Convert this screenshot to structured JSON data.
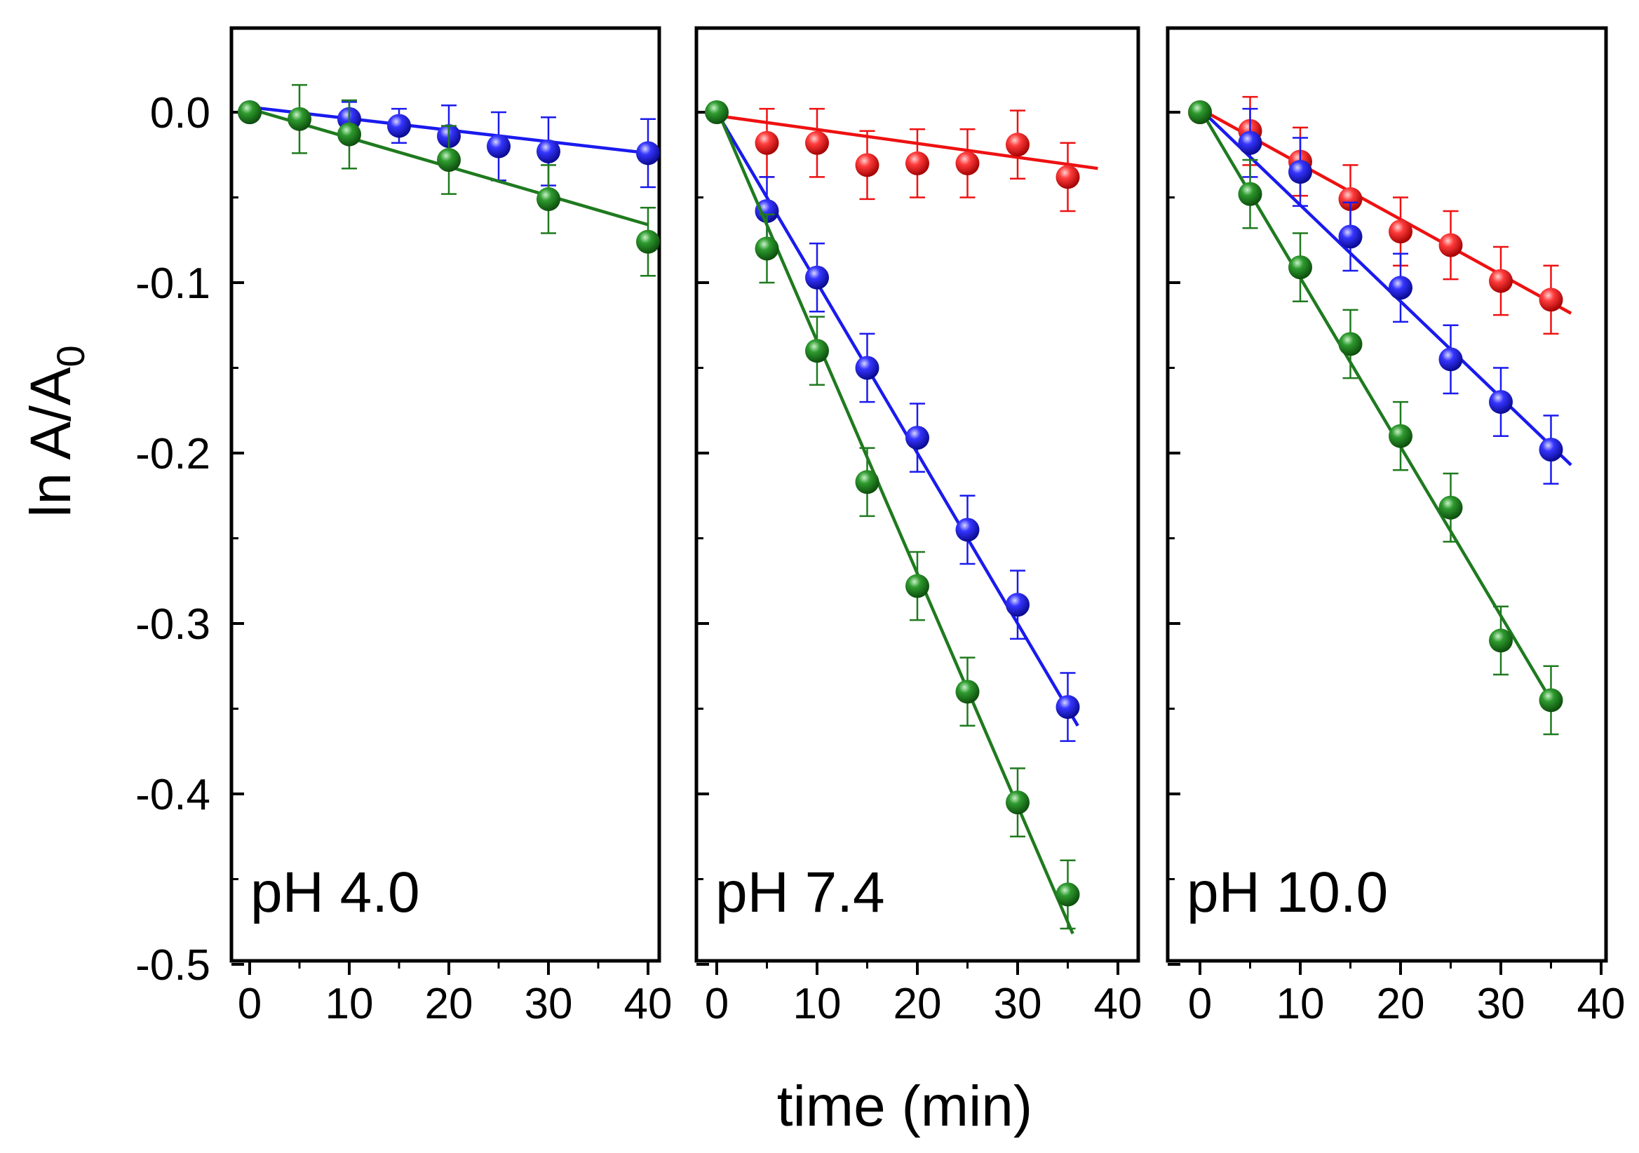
{
  "chart_data": {
    "type": "scatter",
    "ylabel": "ln A/A",
    "ylabel_subscript": "0",
    "xlabel": "time (min)",
    "ylim": [
      -0.5,
      0.05
    ],
    "yticks": [
      0.0,
      -0.1,
      -0.2,
      -0.3,
      -0.4,
      -0.5
    ],
    "ytick_labels": [
      "0.0",
      "-0.1",
      "-0.2",
      "-0.3",
      "-0.4",
      "-0.5"
    ],
    "colors": {
      "red": "#ee1111",
      "blue": "#1a1aee",
      "green": "#1f7a1f"
    },
    "panels": [
      {
        "label": "pH 4.0",
        "xlim": [
          -3,
          42
        ],
        "xticks": [
          0,
          10,
          20,
          30,
          40
        ],
        "xtick_labels": [
          "0",
          "10",
          "20",
          "30",
          "40"
        ],
        "series": [
          {
            "name": "blue",
            "color": "#1a1aee",
            "x": [
              0,
              10,
              15,
              20,
              25,
              30,
              40
            ],
            "y": [
              0.0,
              -0.004,
              -0.008,
              -0.014,
              -0.02,
              -0.023,
              -0.024
            ],
            "err": [
              0.005,
              0.01,
              0.01,
              0.018,
              0.02,
              0.02,
              0.02
            ],
            "fit": {
              "x": [
                0,
                40
              ],
              "y": [
                0.003,
                -0.024
              ]
            }
          },
          {
            "name": "green",
            "color": "#1f7a1f",
            "x": [
              0,
              5,
              10,
              20,
              30,
              40
            ],
            "y": [
              0.0,
              -0.004,
              -0.013,
              -0.028,
              -0.051,
              -0.076
            ],
            "err": [
              0.005,
              0.02,
              0.02,
              0.02,
              0.02,
              0.02
            ],
            "fit": {
              "x": [
                0,
                40
              ],
              "y": [
                0.002,
                -0.066
              ]
            }
          }
        ]
      },
      {
        "label": "pH 7.4",
        "xlim": [
          -3,
          42
        ],
        "xticks": [
          0,
          10,
          20,
          30,
          40
        ],
        "xtick_labels": [
          "0",
          "10",
          "20",
          "30",
          "40"
        ],
        "series": [
          {
            "name": "red",
            "color": "#ee1111",
            "x": [
              5,
              10,
              15,
              20,
              25,
              30,
              35
            ],
            "y": [
              -0.018,
              -0.018,
              -0.031,
              -0.03,
              -0.03,
              -0.019,
              -0.038
            ],
            "err": [
              0.02,
              0.02,
              0.02,
              0.02,
              0.02,
              0.02,
              0.02
            ],
            "fit": {
              "x": [
                0,
                38
              ],
              "y": [
                -0.002,
                -0.033
              ]
            }
          },
          {
            "name": "blue",
            "color": "#1a1aee",
            "x": [
              5,
              10,
              15,
              20,
              25,
              30,
              35
            ],
            "y": [
              -0.058,
              -0.097,
              -0.15,
              -0.191,
              -0.245,
              -0.289,
              -0.349
            ],
            "err": [
              0.02,
              0.02,
              0.02,
              0.02,
              0.02,
              0.02,
              0.02
            ],
            "fit": {
              "x": [
                0,
                36
              ],
              "y": [
                0.0,
                -0.36
              ]
            }
          },
          {
            "name": "green",
            "color": "#1f7a1f",
            "x": [
              0,
              5,
              10,
              15,
              20,
              25,
              30,
              35
            ],
            "y": [
              0.0,
              -0.08,
              -0.14,
              -0.217,
              -0.278,
              -0.34,
              -0.405,
              -0.459
            ],
            "err": [
              0.005,
              0.02,
              0.02,
              0.02,
              0.02,
              0.02,
              0.02,
              0.02
            ],
            "fit": {
              "x": [
                0,
                35.5
              ],
              "y": [
                0.002,
                -0.482
              ]
            }
          }
        ]
      },
      {
        "label": "pH 10.0",
        "xlim": [
          -3,
          42
        ],
        "xticks": [
          0,
          10,
          20,
          30,
          40
        ],
        "xtick_labels": [
          "0",
          "10",
          "20",
          "30",
          "40"
        ],
        "series": [
          {
            "name": "red",
            "color": "#ee1111",
            "x": [
              0,
              5,
              10,
              15,
              20,
              25,
              30,
              35
            ],
            "y": [
              0.0,
              -0.011,
              -0.029,
              -0.051,
              -0.07,
              -0.078,
              -0.099,
              -0.11
            ],
            "err": [
              0.005,
              0.02,
              0.02,
              0.02,
              0.02,
              0.02,
              0.02,
              0.02
            ],
            "fit": {
              "x": [
                0,
                37
              ],
              "y": [
                0.002,
                -0.118
              ]
            }
          },
          {
            "name": "blue",
            "color": "#1a1aee",
            "x": [
              5,
              10,
              15,
              20,
              25,
              30,
              35
            ],
            "y": [
              -0.018,
              -0.035,
              -0.073,
              -0.103,
              -0.145,
              -0.17,
              -0.198
            ],
            "err": [
              0.02,
              0.02,
              0.02,
              0.02,
              0.02,
              0.02,
              0.02
            ],
            "fit": {
              "x": [
                0,
                37
              ],
              "y": [
                0.002,
                -0.207
              ]
            }
          },
          {
            "name": "green",
            "color": "#1f7a1f",
            "x": [
              0,
              5,
              10,
              15,
              20,
              25,
              30,
              35
            ],
            "y": [
              0.0,
              -0.048,
              -0.091,
              -0.136,
              -0.19,
              -0.232,
              -0.31,
              -0.345
            ],
            "err": [
              0.005,
              0.02,
              0.02,
              0.02,
              0.02,
              0.02,
              0.02,
              0.02
            ],
            "fit": {
              "x": [
                0,
                35.5
              ],
              "y": [
                0.002,
                -0.35
              ]
            }
          }
        ]
      }
    ]
  }
}
